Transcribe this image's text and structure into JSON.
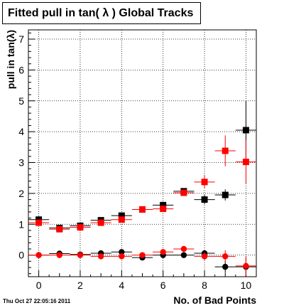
{
  "chart_data": {
    "type": "scatter",
    "title": "Fitted pull in tan( λ )  Global Tracks",
    "xlabel": "No. of Bad Points",
    "ylabel": "pull in tan(λ)",
    "xlim": [
      -0.5,
      10.5
    ],
    "ylim": [
      -0.7,
      7.3
    ],
    "x_ticks": [
      0,
      2,
      4,
      6,
      8,
      10
    ],
    "y_ticks": [
      0,
      1,
      2,
      3,
      4,
      5,
      6,
      7
    ],
    "grid": true,
    "series": [
      {
        "marker": "square",
        "color": "#000000",
        "points": [
          {
            "x": 0,
            "y": 1.15,
            "err": 0.05
          },
          {
            "x": 1,
            "y": 0.88,
            "err": 0.05
          },
          {
            "x": 2,
            "y": 0.95,
            "err": 0.05
          },
          {
            "x": 3,
            "y": 1.13,
            "err": 0.05
          },
          {
            "x": 4,
            "y": 1.28,
            "err": 0.07
          },
          {
            "x": 5,
            "y": 1.48,
            "err": 0.07
          },
          {
            "x": 6,
            "y": 1.62,
            "err": 0.09
          },
          {
            "x": 7,
            "y": 2.07,
            "err": 0.09
          },
          {
            "x": 8,
            "y": 1.8,
            "err": 0.15
          },
          {
            "x": 9,
            "y": 1.95,
            "err": 0.18
          },
          {
            "x": 10,
            "y": 4.05,
            "err": 0.95
          }
        ]
      },
      {
        "marker": "square",
        "color": "#ff0000",
        "points": [
          {
            "x": 0,
            "y": 1.05,
            "err": 0.05
          },
          {
            "x": 1,
            "y": 0.84,
            "err": 0.05
          },
          {
            "x": 2,
            "y": 0.9,
            "err": 0.05
          },
          {
            "x": 3,
            "y": 1.05,
            "err": 0.05
          },
          {
            "x": 4,
            "y": 1.15,
            "err": 0.07
          },
          {
            "x": 5,
            "y": 1.48,
            "err": 0.07
          },
          {
            "x": 6,
            "y": 1.5,
            "err": 0.09
          },
          {
            "x": 7,
            "y": 2.02,
            "err": 0.1
          },
          {
            "x": 8,
            "y": 2.37,
            "err": 0.2
          },
          {
            "x": 9,
            "y": 3.38,
            "err": 0.5
          },
          {
            "x": 10,
            "y": 3.02,
            "err": 0.7
          }
        ]
      },
      {
        "marker": "circle",
        "color": "#000000",
        "points": [
          {
            "x": 0,
            "y": 0.0,
            "err": 0.03
          },
          {
            "x": 1,
            "y": 0.05,
            "err": 0.03
          },
          {
            "x": 2,
            "y": 0.02,
            "err": 0.03
          },
          {
            "x": 3,
            "y": 0.06,
            "err": 0.03
          },
          {
            "x": 4,
            "y": 0.1,
            "err": 0.04
          },
          {
            "x": 5,
            "y": -0.08,
            "err": 0.05
          },
          {
            "x": 6,
            "y": 0.0,
            "err": 0.05
          },
          {
            "x": 7,
            "y": 0.0,
            "err": 0.08
          },
          {
            "x": 8,
            "y": 0.06,
            "err": 0.1
          },
          {
            "x": 9,
            "y": -0.38,
            "err": 0.2
          },
          {
            "x": 10,
            "y": -0.38,
            "err": 0.3
          }
        ]
      },
      {
        "marker": "circle",
        "color": "#ff0000",
        "points": [
          {
            "x": 0,
            "y": 0.0,
            "err": 0.03
          },
          {
            "x": 1,
            "y": 0.0,
            "err": 0.03
          },
          {
            "x": 2,
            "y": 0.0,
            "err": 0.03
          },
          {
            "x": 3,
            "y": -0.04,
            "err": 0.03
          },
          {
            "x": 4,
            "y": -0.04,
            "err": 0.04
          },
          {
            "x": 5,
            "y": 0.0,
            "err": 0.05
          },
          {
            "x": 6,
            "y": 0.1,
            "err": 0.05
          },
          {
            "x": 7,
            "y": 0.2,
            "err": 0.1
          },
          {
            "x": 8,
            "y": -0.04,
            "err": 0.12
          },
          {
            "x": 9,
            "y": -0.04,
            "err": 0.2
          },
          {
            "x": 10,
            "y": -0.35,
            "err": 0.3
          }
        ]
      }
    ]
  },
  "footer": {
    "timestamp": "Thu Oct 27 22:05:16 2011"
  }
}
